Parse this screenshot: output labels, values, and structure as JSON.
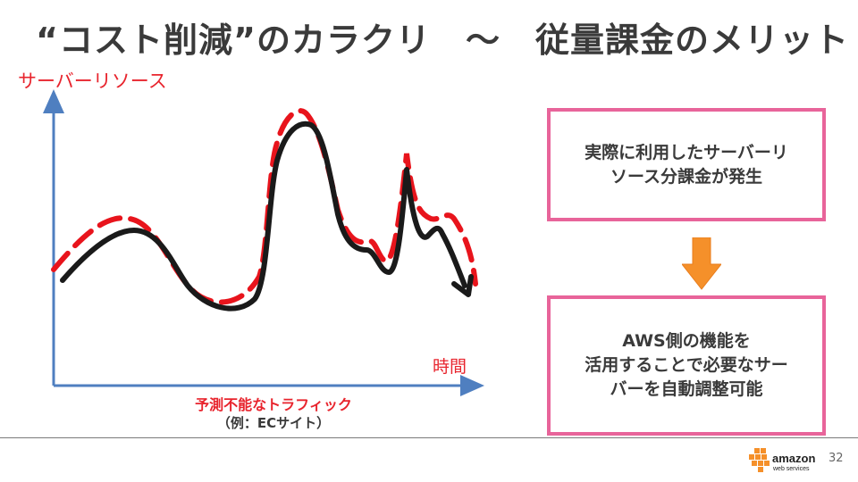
{
  "slide": {
    "title": "“コスト削減”のカラクリ　～　従量課金のメリット",
    "page_number": "32"
  },
  "diagram": {
    "y_axis_label": "サーバーリソース",
    "x_axis_label": "時間",
    "caption_line1": "予測不能なトラフィック",
    "caption_line2": "（例：ECサイト）",
    "colors": {
      "axis": "#4f7fc0",
      "actual_usage": "#1a1a1a",
      "provisioned": "#e8141c",
      "box_border": "#e8649a",
      "arrow": "#f5902a"
    }
  },
  "callouts": {
    "top": [
      "実際に利用したサーバーリ",
      "ソース分課金が発生"
    ],
    "bottom": [
      "AWS側の機能を",
      "活用することで必要なサー",
      "バーを自動調整可能"
    ]
  },
  "footer": {
    "logo_word": "amazon",
    "logo_sub": "web services"
  }
}
